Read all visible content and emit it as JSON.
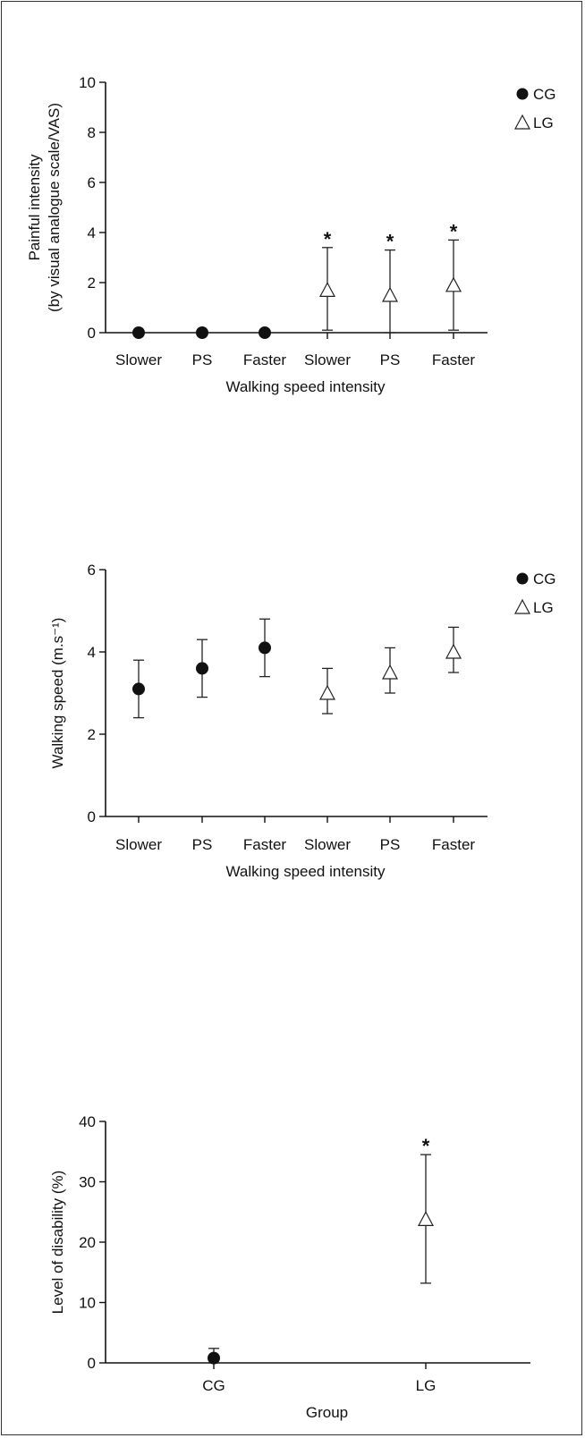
{
  "chart_data": [
    {
      "type": "scatter",
      "title": "",
      "xlabel": "Walking speed intensity",
      "ylabel_lines": [
        "Painful intensity",
        "(by visual analogue scale/VAS)"
      ],
      "ylim": [
        0,
        10
      ],
      "yticks": [
        0,
        2,
        4,
        6,
        8,
        10
      ],
      "categories": [
        "Slower",
        "PS",
        "Faster",
        "Slower",
        "PS",
        "Faster"
      ],
      "legend": {
        "position": "top-right",
        "entries": [
          {
            "label": "CG",
            "marker": "filled-circle"
          },
          {
            "label": "LG",
            "marker": "open-triangle"
          }
        ]
      },
      "series": [
        {
          "name": "CG",
          "marker": "filled-circle",
          "points": [
            {
              "x": 0,
              "mean": 0,
              "upper": 0,
              "lower": 0
            },
            {
              "x": 1,
              "mean": 0,
              "upper": 0,
              "lower": 0
            },
            {
              "x": 2,
              "mean": 0,
              "upper": 0,
              "lower": 0
            }
          ]
        },
        {
          "name": "LG",
          "marker": "open-triangle",
          "points": [
            {
              "x": 3,
              "mean": 1.7,
              "upper": 3.4,
              "lower": 0.1,
              "annotation": "*"
            },
            {
              "x": 4,
              "mean": 1.5,
              "upper": 3.3,
              "lower": 0,
              "annotation": "*"
            },
            {
              "x": 5,
              "mean": 1.9,
              "upper": 3.7,
              "lower": 0.1,
              "annotation": "*"
            }
          ]
        }
      ]
    },
    {
      "type": "scatter",
      "title": "",
      "xlabel": "Walking speed intensity",
      "ylabel_lines": [
        "Walking speed (m.s⁻¹)"
      ],
      "ylim": [
        0,
        6
      ],
      "yticks": [
        0,
        2,
        4,
        6
      ],
      "categories": [
        "Slower",
        "PS",
        "Faster",
        "Slower",
        "PS",
        "Faster"
      ],
      "legend": {
        "position": "top-right",
        "entries": [
          {
            "label": "CG",
            "marker": "filled-circle"
          },
          {
            "label": "LG",
            "marker": "open-triangle"
          }
        ]
      },
      "series": [
        {
          "name": "CG",
          "marker": "filled-circle",
          "points": [
            {
              "x": 0,
              "mean": 3.1,
              "upper": 3.8,
              "lower": 2.4
            },
            {
              "x": 1,
              "mean": 3.6,
              "upper": 4.3,
              "lower": 2.9
            },
            {
              "x": 2,
              "mean": 4.1,
              "upper": 4.8,
              "lower": 3.4
            }
          ]
        },
        {
          "name": "LG",
          "marker": "open-triangle",
          "points": [
            {
              "x": 3,
              "mean": 3.0,
              "upper": 3.6,
              "lower": 2.5
            },
            {
              "x": 4,
              "mean": 3.5,
              "upper": 4.1,
              "lower": 3.0
            },
            {
              "x": 5,
              "mean": 4.0,
              "upper": 4.6,
              "lower": 3.5
            }
          ]
        }
      ]
    },
    {
      "type": "scatter",
      "title": "",
      "xlabel": "Group",
      "ylabel_lines": [
        "Level of disability (%)"
      ],
      "ylim": [
        0,
        40
      ],
      "yticks": [
        0,
        10,
        20,
        30,
        40
      ],
      "categories": [
        "CG",
        "LG"
      ],
      "series": [
        {
          "name": "CG",
          "marker": "filled-circle",
          "points": [
            {
              "x": 0,
              "mean": 0.8,
              "upper": 2.4,
              "lower": 0
            }
          ]
        },
        {
          "name": "LG",
          "marker": "open-triangle",
          "points": [
            {
              "x": 1,
              "mean": 23.8,
              "upper": 34.5,
              "lower": 13.2,
              "annotation": "*"
            }
          ]
        }
      ]
    }
  ]
}
